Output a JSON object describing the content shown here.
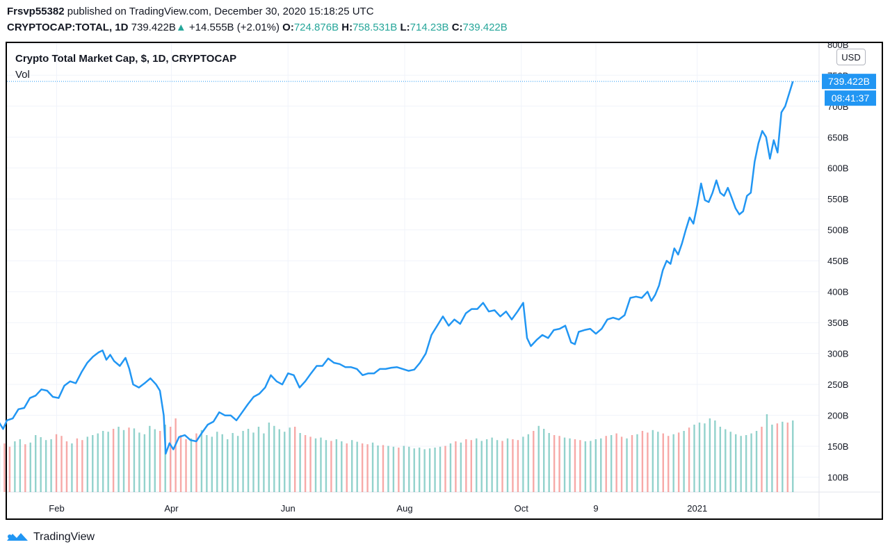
{
  "header": {
    "publisher": "Frsvp55382",
    "published_text": "published on TradingView.com, December 30, 2020 15:18:25 UTC",
    "symbol": "CRYPTOCAP:TOTAL, 1D",
    "last": "739.422B",
    "change": "+14.555B (+2.01%)",
    "o_label": "O:",
    "o_value": "724.876B",
    "h_label": "H:",
    "h_value": "758.531B",
    "l_label": "L:",
    "l_value": "714.23B",
    "c_label": "C:",
    "c_value": "739.422B"
  },
  "legend": {
    "title": "Crypto Total Market Cap, $, 1D, CRYPTOCAP",
    "volume": "Vol"
  },
  "currency_button": "USD",
  "price_tag": {
    "value": "739.422B",
    "countdown": "08:41:37"
  },
  "footer": {
    "brand": "TradingView"
  },
  "colors": {
    "line": "#2196f3",
    "vol_up": "#26a69a",
    "vol_down": "#ef5350",
    "tag": "#2196f3"
  },
  "chart_data": {
    "type": "line",
    "ylim": [
      76,
      802
    ],
    "y_ticks": [
      "100B",
      "150B",
      "200B",
      "250B",
      "300B",
      "350B",
      "400B",
      "450B",
      "500B",
      "550B",
      "600B",
      "650B",
      "700B",
      "750B",
      "800B"
    ],
    "x_ticks": [
      "Feb",
      "Apr",
      "Jun",
      "Aug",
      "Oct",
      "9",
      "2021"
    ],
    "x_tick_days": [
      31,
      91,
      152,
      213,
      274,
      313,
      366
    ],
    "series": [
      {
        "values_B": [
          [
            1,
            188
          ],
          [
            3,
            178
          ],
          [
            5,
            192
          ],
          [
            8,
            195
          ],
          [
            11,
            210
          ],
          [
            14,
            212
          ],
          [
            17,
            228
          ],
          [
            20,
            232
          ],
          [
            23,
            242
          ],
          [
            26,
            240
          ],
          [
            29,
            230
          ],
          [
            32,
            228
          ],
          [
            35,
            248
          ],
          [
            38,
            255
          ],
          [
            41,
            252
          ],
          [
            44,
            270
          ],
          [
            47,
            285
          ],
          [
            50,
            295
          ],
          [
            53,
            302
          ],
          [
            55,
            305
          ],
          [
            57,
            290
          ],
          [
            59,
            298
          ],
          [
            61,
            288
          ],
          [
            64,
            280
          ],
          [
            67,
            293
          ],
          [
            69,
            275
          ],
          [
            71,
            250
          ],
          [
            74,
            245
          ],
          [
            77,
            252
          ],
          [
            80,
            260
          ],
          [
            83,
            250
          ],
          [
            85,
            240
          ],
          [
            87,
            200
          ],
          [
            88,
            138
          ],
          [
            90,
            155
          ],
          [
            92,
            145
          ],
          [
            95,
            165
          ],
          [
            98,
            168
          ],
          [
            101,
            160
          ],
          [
            104,
            158
          ],
          [
            107,
            172
          ],
          [
            110,
            185
          ],
          [
            113,
            190
          ],
          [
            116,
            205
          ],
          [
            119,
            200
          ],
          [
            122,
            200
          ],
          [
            125,
            192
          ],
          [
            128,
            205
          ],
          [
            131,
            218
          ],
          [
            134,
            230
          ],
          [
            137,
            235
          ],
          [
            140,
            245
          ],
          [
            143,
            265
          ],
          [
            146,
            255
          ],
          [
            149,
            250
          ],
          [
            152,
            268
          ],
          [
            155,
            265
          ],
          [
            158,
            245
          ],
          [
            161,
            255
          ],
          [
            164,
            268
          ],
          [
            167,
            280
          ],
          [
            170,
            280
          ],
          [
            173,
            292
          ],
          [
            176,
            285
          ],
          [
            179,
            283
          ],
          [
            182,
            278
          ],
          [
            185,
            278
          ],
          [
            188,
            275
          ],
          [
            191,
            265
          ],
          [
            194,
            268
          ],
          [
            197,
            268
          ],
          [
            200,
            275
          ],
          [
            203,
            275
          ],
          [
            206,
            277
          ],
          [
            209,
            278
          ],
          [
            212,
            275
          ],
          [
            215,
            272
          ],
          [
            218,
            274
          ],
          [
            221,
            285
          ],
          [
            224,
            300
          ],
          [
            227,
            330
          ],
          [
            230,
            345
          ],
          [
            233,
            360
          ],
          [
            236,
            345
          ],
          [
            239,
            355
          ],
          [
            242,
            348
          ],
          [
            245,
            365
          ],
          [
            248,
            372
          ],
          [
            251,
            372
          ],
          [
            254,
            382
          ],
          [
            257,
            368
          ],
          [
            260,
            370
          ],
          [
            263,
            360
          ],
          [
            266,
            368
          ],
          [
            269,
            355
          ],
          [
            272,
            368
          ],
          [
            275,
            382
          ],
          [
            277,
            325
          ],
          [
            279,
            312
          ],
          [
            282,
            322
          ],
          [
            285,
            330
          ],
          [
            288,
            325
          ],
          [
            291,
            338
          ],
          [
            294,
            340
          ],
          [
            297,
            345
          ],
          [
            300,
            318
          ],
          [
            302,
            315
          ],
          [
            304,
            335
          ],
          [
            307,
            338
          ],
          [
            310,
            340
          ],
          [
            313,
            332
          ],
          [
            316,
            340
          ],
          [
            319,
            355
          ],
          [
            322,
            358
          ],
          [
            325,
            355
          ],
          [
            328,
            362
          ],
          [
            331,
            390
          ],
          [
            334,
            392
          ],
          [
            337,
            390
          ],
          [
            340,
            400
          ],
          [
            342,
            385
          ],
          [
            344,
            395
          ],
          [
            346,
            410
          ],
          [
            348,
            435
          ],
          [
            350,
            450
          ],
          [
            352,
            445
          ],
          [
            354,
            470
          ],
          [
            356,
            460
          ],
          [
            358,
            478
          ],
          [
            360,
            500
          ],
          [
            362,
            520
          ],
          [
            364,
            510
          ],
          [
            366,
            540
          ],
          [
            368,
            575
          ],
          [
            370,
            548
          ],
          [
            372,
            545
          ],
          [
            374,
            560
          ],
          [
            376,
            580
          ],
          [
            378,
            560
          ],
          [
            380,
            555
          ],
          [
            382,
            568
          ],
          [
            384,
            552
          ],
          [
            386,
            535
          ],
          [
            388,
            525
          ],
          [
            390,
            530
          ],
          [
            392,
            555
          ],
          [
            394,
            560
          ],
          [
            396,
            610
          ],
          [
            398,
            640
          ],
          [
            400,
            660
          ],
          [
            402,
            650
          ],
          [
            404,
            615
          ],
          [
            406,
            645
          ],
          [
            408,
            625
          ],
          [
            410,
            690
          ],
          [
            412,
            700
          ],
          [
            414,
            720
          ],
          [
            416,
            740
          ]
        ]
      }
    ],
    "volume_bars_relative": [
      0.45,
      0.5,
      0.42,
      0.55,
      0.6,
      0.48,
      0.52,
      0.7,
      0.65,
      0.58,
      0.6,
      0.72,
      0.68,
      0.55,
      0.5,
      0.62,
      0.58,
      0.66,
      0.7,
      0.74,
      0.8,
      0.78,
      0.85,
      0.9,
      0.82,
      0.88,
      0.86,
      0.76,
      0.72,
      0.92,
      0.84,
      0.8,
      0.95,
      0.9,
      1.1,
      0.7,
      0.6,
      0.62,
      0.74,
      0.82,
      0.7,
      0.66,
      0.78,
      0.72,
      0.6,
      0.75,
      0.68,
      0.8,
      0.85,
      0.76,
      0.9,
      0.74,
      1.0,
      0.92,
      0.84,
      0.78,
      0.88,
      0.9,
      0.75,
      0.7,
      0.66,
      0.62,
      0.64,
      0.58,
      0.56,
      0.6,
      0.55,
      0.5,
      0.58,
      0.54,
      0.5,
      0.48,
      0.52,
      0.45,
      0.46,
      0.44,
      0.42,
      0.4,
      0.44,
      0.42,
      0.38,
      0.4,
      0.36,
      0.38,
      0.4,
      0.42,
      0.44,
      0.5,
      0.55,
      0.52,
      0.6,
      0.58,
      0.62,
      0.56,
      0.6,
      0.64,
      0.58,
      0.56,
      0.62,
      0.6,
      0.58,
      0.66,
      0.72,
      0.8,
      0.92,
      0.85,
      0.75,
      0.7,
      0.68,
      0.64,
      0.62,
      0.6,
      0.58,
      0.55,
      0.56,
      0.6,
      0.62,
      0.68,
      0.7,
      0.74,
      0.66,
      0.62,
      0.7,
      0.72,
      0.8,
      0.76,
      0.82,
      0.78,
      0.74,
      0.68,
      0.72,
      0.76,
      0.8,
      0.88,
      0.95,
      1.0,
      0.98,
      1.1,
      1.05,
      0.9,
      0.84,
      0.78,
      0.72,
      0.68,
      0.7,
      0.74,
      0.8,
      0.9,
      1.2,
      0.95,
      0.98,
      1.02,
      1.0,
      1.05
    ]
  }
}
